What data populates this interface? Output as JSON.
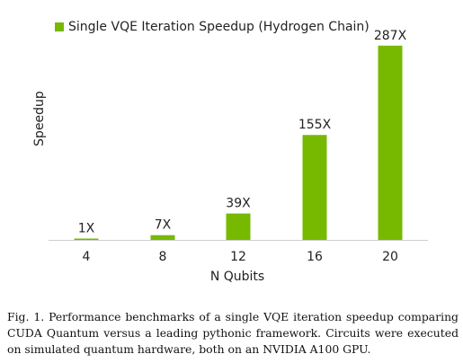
{
  "chart_data": {
    "type": "bar",
    "categories": [
      "4",
      "8",
      "12",
      "16",
      "20"
    ],
    "series": [
      {
        "name": "Single VQE Iteration Speedup (Hydrogen Chain)",
        "values": [
          1,
          7,
          39,
          155,
          287
        ],
        "labels": [
          "1X",
          "7X",
          "39X",
          "155X",
          "287X"
        ]
      }
    ],
    "xlabel": "N Qubits",
    "ylabel": "Speedup",
    "ylim": [
      0,
      300
    ],
    "grid": false,
    "legend_position": "top-left",
    "bar_color": "#76b900"
  },
  "caption": "Fig. 1.  Performance benchmarks of a single VQE iteration speedup comparing CUDA Quantum versus a leading pythonic framework. Circuits were executed on simulated quantum hardware, both on an NVIDIA A100 GPU."
}
